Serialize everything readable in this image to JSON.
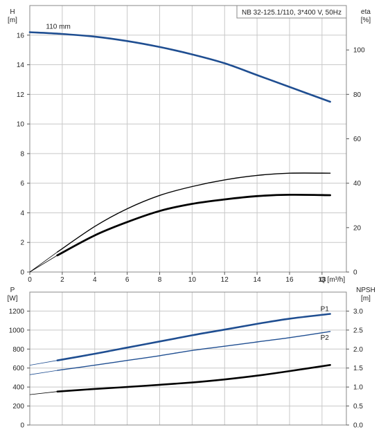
{
  "chart_data": [
    {
      "type": "line",
      "title": "NB 32-125.1/110, 3*400 V, 50Hz",
      "x": {
        "label": "Q [m³/h]",
        "range": [
          0,
          19.5
        ],
        "ticks": [
          0,
          2,
          4,
          6,
          8,
          10,
          12,
          14,
          16,
          18
        ]
      },
      "left_axis": {
        "name": "H",
        "unit": "[m]",
        "range": [
          0,
          18
        ],
        "ticks": [
          0,
          2,
          4,
          6,
          8,
          10,
          12,
          14,
          16
        ]
      },
      "right_axis": {
        "name": "eta",
        "unit": "[%]",
        "range": [
          0,
          120
        ],
        "ticks": [
          0,
          20,
          40,
          60,
          80,
          100
        ]
      },
      "grid": true,
      "series": [
        {
          "name": "110 mm",
          "axis": "left",
          "color": "#1f4e91",
          "points": [
            [
              0,
              16.2
            ],
            [
              1.7,
              16.1
            ],
            [
              4,
              15.9
            ],
            [
              6,
              15.6
            ],
            [
              8,
              15.2
            ],
            [
              10,
              14.7
            ],
            [
              12,
              14.1
            ],
            [
              14,
              13.3
            ],
            [
              16,
              12.5
            ],
            [
              18.5,
              11.5
            ]
          ]
        },
        {
          "axis": "right",
          "color": "#000000",
          "dashed_until": 1.7,
          "points": [
            [
              0,
              0
            ],
            [
              1.7,
              9
            ],
            [
              4,
              20.5
            ],
            [
              6,
              28.5
            ],
            [
              8,
              34.5
            ],
            [
              10,
              38.5
            ],
            [
              12,
              41.5
            ],
            [
              14,
              43.5
            ],
            [
              16,
              44.5
            ],
            [
              18.5,
              44.5
            ]
          ]
        },
        {
          "axis": "right",
          "color": "#000000",
          "dashed_until": 1.7,
          "points": [
            [
              0,
              0
            ],
            [
              1.7,
              7.5
            ],
            [
              4,
              16.5
            ],
            [
              6,
              22.5
            ],
            [
              8,
              27.5
            ],
            [
              10,
              30.7
            ],
            [
              12,
              32.7
            ],
            [
              14,
              34.2
            ],
            [
              16,
              34.8
            ],
            [
              18.5,
              34.6
            ]
          ]
        }
      ]
    },
    {
      "type": "line",
      "x": {
        "range": [
          0,
          19.5
        ],
        "ticks": [
          0,
          2,
          4,
          6,
          8,
          10,
          12,
          14,
          16,
          18
        ]
      },
      "left_axis": {
        "name": "P",
        "unit": "[W]",
        "range": [
          0,
          1400
        ],
        "ticks": [
          0,
          200,
          400,
          600,
          800,
          1000,
          1200
        ]
      },
      "right_axis": {
        "name": "NPSH",
        "unit": "[m]",
        "range": [
          0,
          3.5
        ],
        "ticks": [
          0.0,
          0.5,
          1.0,
          1.5,
          2.0,
          2.5,
          3.0
        ]
      },
      "grid": true,
      "series": [
        {
          "name": "P1",
          "axis": "left",
          "color": "#1f4e91",
          "dashed_until": 1.7,
          "points": [
            [
              0,
              630
            ],
            [
              1.7,
              680
            ],
            [
              4,
              750
            ],
            [
              6,
              815
            ],
            [
              8,
              880
            ],
            [
              10,
              945
            ],
            [
              12,
              1005
            ],
            [
              14,
              1065
            ],
            [
              16,
              1120
            ],
            [
              18.5,
              1170
            ]
          ]
        },
        {
          "name": "P2",
          "axis": "left",
          "color": "#1f4e91",
          "dashed_until": 1.7,
          "points": [
            [
              0,
              530
            ],
            [
              1.7,
              575
            ],
            [
              4,
              630
            ],
            [
              6,
              680
            ],
            [
              8,
              730
            ],
            [
              10,
              785
            ],
            [
              12,
              830
            ],
            [
              14,
              875
            ],
            [
              16,
              920
            ],
            [
              18.5,
              985
            ]
          ]
        },
        {
          "axis": "right",
          "color": "#000000",
          "dashed_until": 1.7,
          "points": [
            [
              0,
              0.8
            ],
            [
              1.7,
              0.88
            ],
            [
              4,
              0.95
            ],
            [
              6,
              1.0
            ],
            [
              8,
              1.06
            ],
            [
              10,
              1.12
            ],
            [
              12,
              1.2
            ],
            [
              14,
              1.3
            ],
            [
              16,
              1.42
            ],
            [
              18.5,
              1.58
            ]
          ]
        }
      ]
    }
  ]
}
